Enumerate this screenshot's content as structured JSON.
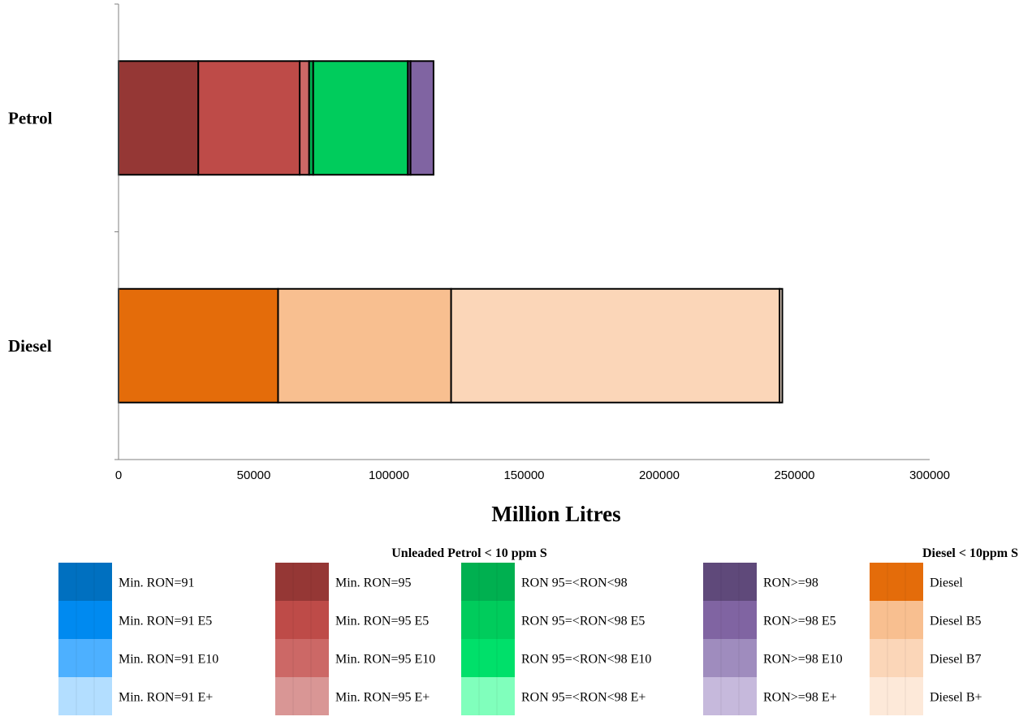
{
  "chart_data": {
    "type": "bar",
    "orientation": "horizontal",
    "stacked": true,
    "categories": [
      "Petrol",
      "Diesel"
    ],
    "xlabel": "Million Litres",
    "ylabel": "",
    "xlim": [
      0,
      300000
    ],
    "x_ticks": [
      "0",
      "50000",
      "100000",
      "150000",
      "200000",
      "250000",
      "300000"
    ],
    "grid": false,
    "legend_position": "bottom",
    "legend_groups": [
      {
        "title": "Unleaded Petrol < 10 ppm S",
        "title_anchor": "center"
      },
      {
        "title": "Diesel < 10ppm S",
        "title_anchor": "right"
      }
    ],
    "legend_columns": [
      [
        "Min. RON=91",
        "Min. RON=91 E5",
        "Min. RON=91 E10",
        "Min. RON=91 E+"
      ],
      [
        "Min. RON=95",
        "Min. RON=95 E5",
        "Min. RON=95 E10",
        "Min. RON=95 E+"
      ],
      [
        "RON 95=<RON<98",
        "RON 95=<RON<98 E5",
        "RON 95=<RON<98 E10",
        "RON 95=<RON<98 E+"
      ],
      [
        "RON>=98",
        "RON>=98 E5",
        "RON>=98 E10",
        "RON>=98 E+"
      ],
      [
        "Diesel",
        "Diesel B5",
        "Diesel B7",
        "Diesel B+"
      ]
    ],
    "series": [
      {
        "name": "Min. RON=91",
        "color": "#0070C0",
        "values": [
          0,
          0
        ]
      },
      {
        "name": "Min. RON=91 E5",
        "color": "#008AF0",
        "values": [
          0,
          0
        ]
      },
      {
        "name": "Min. RON=91 E10",
        "color": "#4DB0FF",
        "values": [
          0,
          0
        ]
      },
      {
        "name": "Min. RON=91 E+",
        "color": "#B3DEFF",
        "values": [
          0,
          0
        ]
      },
      {
        "name": "Min. RON=95",
        "color": "#953735",
        "values": [
          29500,
          0
        ]
      },
      {
        "name": "Min. RON=95 E5",
        "color": "#BE4B48",
        "values": [
          37500,
          0
        ]
      },
      {
        "name": "Min. RON=95 E10",
        "color": "#CC6866",
        "values": [
          3500,
          0
        ]
      },
      {
        "name": "Min. RON=95 E+",
        "color": "#D99695",
        "values": [
          0,
          0
        ]
      },
      {
        "name": "RON 95=<RON<98",
        "color": "#00B050",
        "values": [
          1500,
          0
        ]
      },
      {
        "name": "RON 95=<RON<98 E5",
        "color": "#00CC5C",
        "values": [
          35000,
          0
        ]
      },
      {
        "name": "RON 95=<RON<98 E10",
        "color": "#00E06A",
        "values": [
          0,
          0
        ]
      },
      {
        "name": "RON 95=<RON<98 E+",
        "color": "#80FFBC",
        "values": [
          0,
          0
        ]
      },
      {
        "name": "RON>=98",
        "color": "#5F497A",
        "values": [
          1000,
          0
        ]
      },
      {
        "name": "RON>=98 E5",
        "color": "#8064A2",
        "values": [
          8500,
          0
        ]
      },
      {
        "name": "RON>=98 E10",
        "color": "#9F8CBE",
        "values": [
          0,
          0
        ]
      },
      {
        "name": "RON>=98 E+",
        "color": "#C6B9DC",
        "values": [
          0,
          0
        ]
      },
      {
        "name": "Diesel",
        "color": "#E46C0A",
        "values": [
          0,
          59000
        ]
      },
      {
        "name": "Diesel B5",
        "color": "#F8BF90",
        "values": [
          0,
          64000
        ]
      },
      {
        "name": "Diesel B7",
        "color": "#FBD6B8",
        "values": [
          0,
          121500
        ]
      },
      {
        "name": "Diesel B+",
        "color": "#FDE9D9",
        "values": [
          0,
          1000
        ]
      }
    ]
  }
}
